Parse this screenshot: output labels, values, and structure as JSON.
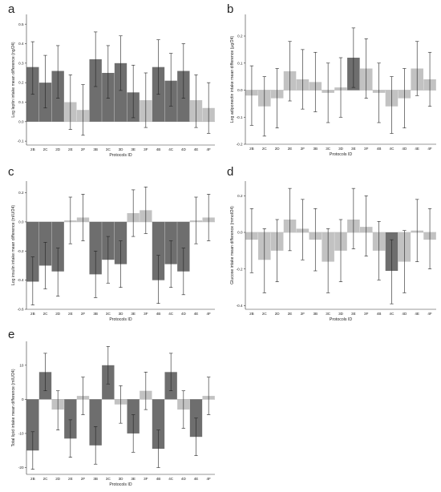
{
  "chart_data": [
    {
      "letter": "a",
      "type": "bar",
      "ylabel": "Log leptin intake mean difference (ng/24)",
      "xlabel": "Protocols ID",
      "categories": [
        "2B",
        "2C",
        "2D",
        "2E",
        "2F",
        "3B",
        "3C",
        "3D",
        "3E",
        "3F",
        "4B",
        "4C",
        "4D",
        "4E",
        "4F"
      ],
      "shades": [
        "dark",
        "dark",
        "dark",
        "light",
        "light",
        "dark",
        "dark",
        "dark",
        "dark",
        "light",
        "dark",
        "dark",
        "dark",
        "light",
        "light"
      ],
      "values": [
        0.28,
        0.2,
        0.26,
        0.1,
        0.06,
        0.32,
        0.25,
        0.3,
        0.15,
        0.11,
        0.28,
        0.21,
        0.26,
        0.11,
        0.07
      ],
      "err_low": [
        0.14,
        0.07,
        0.12,
        -0.04,
        -0.07,
        0.18,
        0.12,
        0.16,
        0.02,
        -0.03,
        0.14,
        0.08,
        0.12,
        -0.03,
        -0.06
      ],
      "err_high": [
        0.41,
        0.34,
        0.39,
        0.24,
        0.19,
        0.46,
        0.39,
        0.44,
        0.29,
        0.25,
        0.42,
        0.35,
        0.4,
        0.24,
        0.2
      ],
      "ylim": [
        -0.12,
        0.55
      ],
      "yticks": [
        -0.1,
        0.0,
        0.1,
        0.2,
        0.3,
        0.4,
        0.5
      ],
      "ytick_labels": [
        "-0.1",
        "0.0",
        "0.1",
        "0.2",
        "0.3",
        "0.4",
        "0.5"
      ]
    },
    {
      "letter": "b",
      "type": "bar",
      "ylabel": "Log adiponectin intake mean difference (µg/24)",
      "xlabel": "Protocols ID",
      "categories": [
        "2B",
        "2C",
        "2D",
        "2E",
        "2F",
        "3B",
        "3C",
        "3D",
        "3E",
        "3F",
        "4B",
        "4C",
        "4D",
        "4E",
        "4F"
      ],
      "shades": [
        "light",
        "light",
        "light",
        "light",
        "light",
        "light",
        "light",
        "light",
        "dark",
        "light",
        "light",
        "light",
        "light",
        "light",
        "light"
      ],
      "values": [
        -0.02,
        -0.06,
        -0.03,
        0.07,
        0.04,
        0.03,
        -0.01,
        0.01,
        0.12,
        0.08,
        -0.01,
        -0.06,
        -0.03,
        0.08,
        0.04
      ],
      "err_low": [
        -0.13,
        -0.17,
        -0.14,
        -0.04,
        -0.07,
        -0.08,
        -0.12,
        -0.1,
        0.01,
        -0.03,
        -0.12,
        -0.16,
        -0.14,
        -0.02,
        -0.06
      ],
      "err_high": [
        0.09,
        0.05,
        0.08,
        0.18,
        0.15,
        0.14,
        0.1,
        0.12,
        0.23,
        0.19,
        0.1,
        0.05,
        0.08,
        0.18,
        0.14
      ],
      "ylim": [
        -0.2,
        0.28
      ],
      "yticks": [
        -0.2,
        -0.1,
        0.0,
        0.1,
        0.2
      ],
      "ytick_labels": [
        "-0.2",
        "-0.1",
        "0.0",
        "0.1",
        "0.2"
      ]
    },
    {
      "letter": "c",
      "type": "bar",
      "ylabel": "Log insulin intake mean difference (mIU/24)",
      "xlabel": "Protocols ID",
      "categories": [
        "2B",
        "2C",
        "2D",
        "2E",
        "2F",
        "3B",
        "3C",
        "3D",
        "3E",
        "3F",
        "4B",
        "4C",
        "4D",
        "4E",
        "4F"
      ],
      "shades": [
        "dark",
        "dark",
        "dark",
        "light",
        "light",
        "dark",
        "dark",
        "dark",
        "light",
        "light",
        "dark",
        "dark",
        "dark",
        "light",
        "light"
      ],
      "values": [
        -0.41,
        -0.3,
        -0.34,
        0.01,
        0.03,
        -0.36,
        -0.26,
        -0.29,
        0.06,
        0.08,
        -0.4,
        -0.29,
        -0.34,
        0.01,
        0.03
      ],
      "err_low": [
        -0.57,
        -0.46,
        -0.51,
        -0.15,
        -0.13,
        -0.52,
        -0.42,
        -0.45,
        -0.1,
        -0.08,
        -0.56,
        -0.45,
        -0.5,
        -0.15,
        -0.13
      ],
      "err_high": [
        -0.24,
        -0.14,
        -0.18,
        0.17,
        0.19,
        -0.2,
        -0.1,
        -0.13,
        0.22,
        0.24,
        -0.23,
        -0.13,
        -0.18,
        0.17,
        0.19
      ],
      "ylim": [
        -0.6,
        0.28
      ],
      "yticks": [
        -0.6,
        -0.4,
        -0.2,
        0.0,
        0.2
      ],
      "ytick_labels": [
        "-0.6",
        "-0.4",
        "-0.2",
        "0.0",
        "0.2"
      ]
    },
    {
      "letter": "d",
      "type": "bar",
      "ylabel": "Glucose intake mean difference (mmol/24)",
      "xlabel": "Protocols ID",
      "categories": [
        "2B",
        "2C",
        "2D",
        "2E",
        "2F",
        "3B",
        "3C",
        "3D",
        "3E",
        "3F",
        "4B",
        "4C",
        "4D",
        "4E",
        "4F"
      ],
      "shades": [
        "light",
        "light",
        "light",
        "light",
        "light",
        "light",
        "light",
        "light",
        "light",
        "light",
        "light",
        "dark",
        "light",
        "light",
        "light"
      ],
      "values": [
        -0.04,
        -0.15,
        -0.1,
        0.07,
        0.02,
        -0.04,
        -0.16,
        -0.1,
        0.07,
        0.03,
        -0.1,
        -0.21,
        -0.16,
        0.01,
        -0.04
      ],
      "err_low": [
        -0.22,
        -0.33,
        -0.27,
        -0.1,
        -0.15,
        -0.21,
        -0.33,
        -0.27,
        -0.09,
        -0.13,
        -0.26,
        -0.39,
        -0.33,
        -0.16,
        -0.2
      ],
      "err_high": [
        0.13,
        0.02,
        0.07,
        0.24,
        0.18,
        0.13,
        0.02,
        0.07,
        0.24,
        0.2,
        0.06,
        -0.04,
        0.01,
        0.18,
        0.13
      ],
      "ylim": [
        -0.42,
        0.28
      ],
      "yticks": [
        -0.4,
        -0.2,
        0.0,
        0.2
      ],
      "ytick_labels": [
        "-0.4",
        "-0.2",
        "0.0",
        "0.2"
      ]
    },
    {
      "letter": "e",
      "type": "bar",
      "ylabel": "Total lipid intake mean difference (mIU/24)",
      "xlabel": "Protocols ID",
      "categories": [
        "2B",
        "2C",
        "2D",
        "2E",
        "2F",
        "3B",
        "3C",
        "3D",
        "3E",
        "3F",
        "4B",
        "4C",
        "4D",
        "4E",
        "4F"
      ],
      "shades": [
        "dark",
        "dark",
        "light",
        "dark",
        "light",
        "dark",
        "dark",
        "light",
        "dark",
        "light",
        "dark",
        "dark",
        "light",
        "dark",
        "light"
      ],
      "values": [
        -15,
        8,
        -3,
        -11.5,
        1,
        -13.5,
        10,
        -1.5,
        -10,
        2.5,
        -14.5,
        8,
        -3,
        -11,
        1
      ],
      "err_low": [
        -20.5,
        2.5,
        -9,
        -17,
        -4.5,
        -19,
        4.5,
        -7,
        -15.5,
        -3,
        -20,
        2.5,
        -8.5,
        -16.5,
        -4.5
      ],
      "err_high": [
        -9.5,
        13.5,
        2.5,
        -6,
        6.5,
        -8,
        15.5,
        4,
        -4.5,
        8,
        -9,
        13.5,
        2.5,
        -5.5,
        6.5
      ],
      "ylim": [
        -22,
        17
      ],
      "yticks": [
        -20,
        -10,
        0,
        10
      ],
      "ytick_labels": [
        "-20",
        "-10",
        "0",
        "10"
      ]
    }
  ],
  "colors": {
    "dark": "#6e6e6e",
    "light": "#c2c2c2",
    "axis": "#333333",
    "errorbar": "#222222",
    "zero_line": "#888888"
  }
}
